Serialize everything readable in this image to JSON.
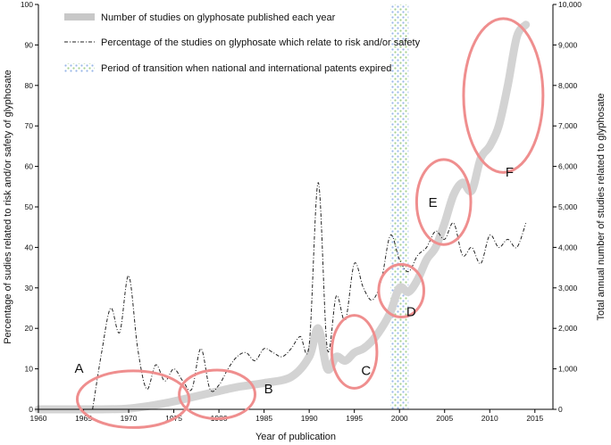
{
  "chart_data": {
    "type": "line",
    "xlabel": "Year of publication",
    "ylabel_left": "Percentage of sudies related to risk and/or safety of glyphosate",
    "ylabel_right": "Total annual number of studies related to glyphosate",
    "xlim": [
      1960,
      2017
    ],
    "ylim_left": [
      0,
      100
    ],
    "ylim_right": [
      0,
      10000
    ],
    "x_ticks": [
      "1960",
      "1965",
      "1970",
      "1975",
      "1980",
      "1985",
      "1990",
      "1995",
      "2000",
      "2005",
      "2010",
      "2015"
    ],
    "y_ticks_left": [
      "0",
      "10",
      "20",
      "30",
      "40",
      "50",
      "60",
      "70",
      "80",
      "90",
      "100"
    ],
    "y_ticks_right": [
      "0",
      "1,000",
      "2,000",
      "3,000",
      "4,000",
      "5,000",
      "6,000",
      "7,000",
      "8,000",
      "9,000",
      "10,000"
    ],
    "legend": {
      "items": [
        "Number of studies on glyphosate published each year",
        "Percentage of the studies on glyphosate which relate to risk and/or safety",
        "Period of transition when national and international patents expired"
      ],
      "placement": "top-left"
    },
    "series": [
      {
        "name": "Number of studies on glyphosate published each year",
        "axis": "right",
        "color": "#d3d3d3",
        "x": [
          1960,
          1963,
          1966,
          1970,
          1974,
          1978,
          1980,
          1982,
          1985,
          1988,
          1990,
          1991,
          1992,
          1993,
          1994,
          1995,
          1996,
          1997,
          1998,
          1999,
          2000,
          2001,
          2002,
          2003,
          2004,
          2005,
          2006,
          2007,
          2008,
          2009,
          2010,
          2011,
          2012,
          2013,
          2014
        ],
        "values": [
          0,
          0,
          0,
          20,
          150,
          350,
          450,
          550,
          650,
          800,
          1300,
          2000,
          1000,
          1300,
          1200,
          1400,
          1500,
          1700,
          2000,
          2400,
          3000,
          2900,
          3200,
          3700,
          4000,
          4600,
          5300,
          5600,
          5400,
          6200,
          6500,
          7000,
          8000,
          9200,
          9500
        ]
      },
      {
        "name": "Percentage of the studies on glyphosate which relate to risk and/or safety",
        "axis": "left",
        "color": "#222222",
        "x": [
          1966,
          1967,
          1968,
          1969,
          1970,
          1971,
          1972,
          1973,
          1974,
          1975,
          1976,
          1977,
          1978,
          1979,
          1980,
          1981,
          1982,
          1983,
          1984,
          1985,
          1986,
          1987,
          1988,
          1989,
          1990,
          1991,
          1992,
          1993,
          1994,
          1995,
          1996,
          1997,
          1998,
          1999,
          2000,
          2001,
          2002,
          2003,
          2004,
          2005,
          2006,
          2007,
          2008,
          2009,
          2010,
          2011,
          2012,
          2013,
          2014
        ],
        "values": [
          0,
          14,
          25,
          19,
          33,
          15,
          5,
          11,
          7,
          10,
          7,
          5,
          15,
          5,
          6,
          10,
          13,
          14,
          12,
          15,
          14,
          13,
          15,
          18,
          16,
          56,
          15,
          28,
          22,
          36,
          30,
          27,
          32,
          43,
          37,
          34,
          38,
          40,
          44,
          42,
          46,
          38,
          40,
          36,
          43,
          40,
          42,
          40,
          46
        ]
      }
    ],
    "shaded_period": {
      "x": [
        1999,
        2001
      ],
      "label": "Period of transition when national and international patents expired"
    },
    "annotations": [
      {
        "label": "A",
        "x": 1964.5,
        "y": 9
      },
      {
        "label": "B",
        "x": 1985.5,
        "y": 4
      },
      {
        "label": "C",
        "x": 1996.3,
        "y": 8.5
      },
      {
        "label": "D",
        "x": 2001.3,
        "y": 23
      },
      {
        "label": "E",
        "x": 2003.7,
        "y": 50
      },
      {
        "label": "F",
        "x": 2012.2,
        "y": 57.5
      }
    ],
    "highlight_circles": [
      {
        "cx": 1970.5,
        "cy": 2.5,
        "rx": 6.2,
        "ry": 7
      },
      {
        "cx": 1979.8,
        "cy": 3.7,
        "rx": 4.2,
        "ry": 6
      },
      {
        "cx": 1995.0,
        "cy": 14.2,
        "rx": 2.5,
        "ry": 9
      },
      {
        "cx": 2000.2,
        "cy": 29.3,
        "rx": 2.5,
        "ry": 6.5
      },
      {
        "cx": 2004.9,
        "cy": 51.2,
        "rx": 3.0,
        "ry": 10.5
      },
      {
        "cx": 2011.5,
        "cy": 77.5,
        "rx": 4.4,
        "ry": 19
      }
    ],
    "grid": false
  }
}
